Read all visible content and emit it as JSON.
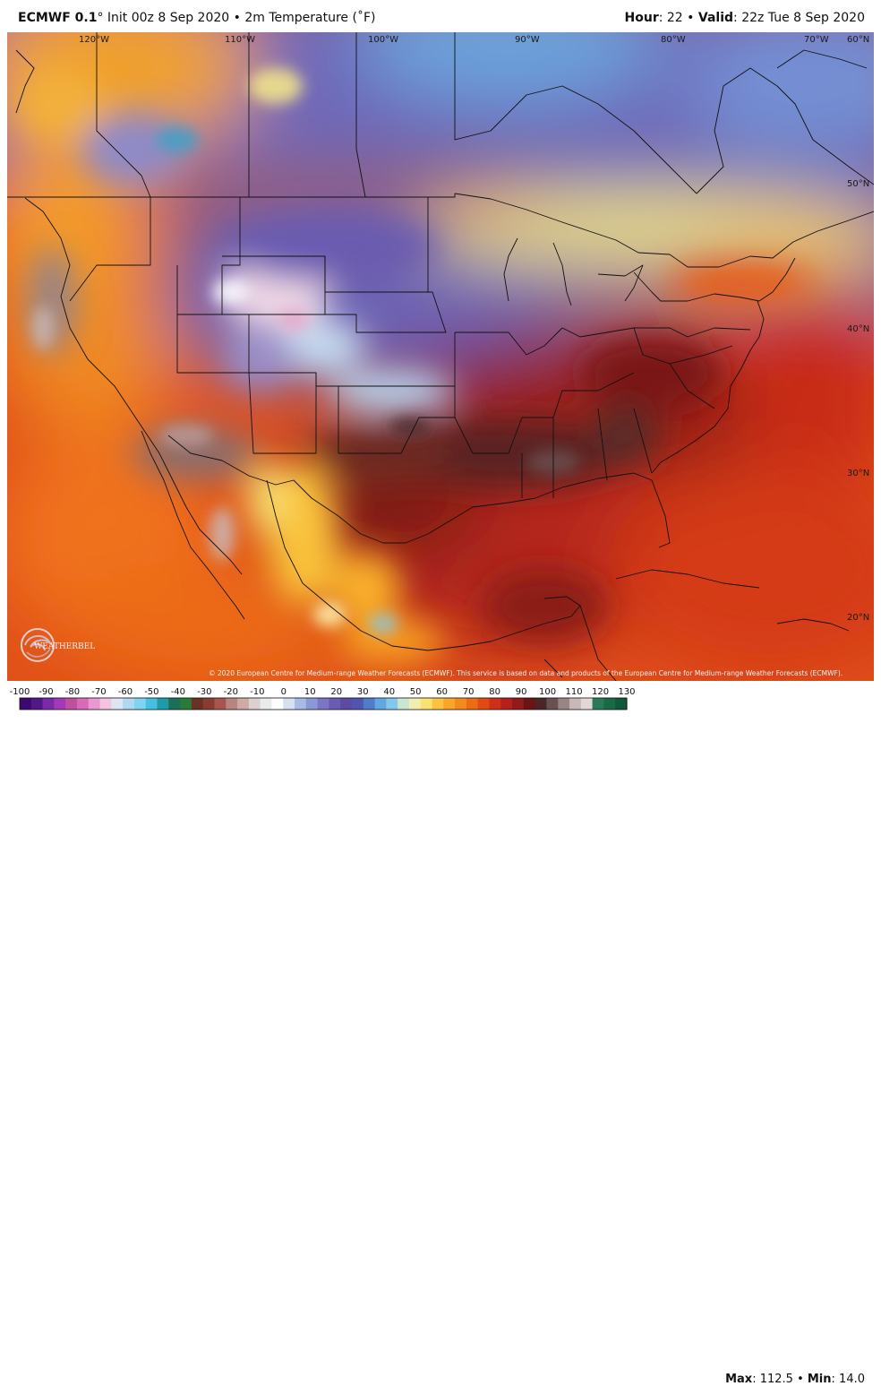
{
  "header": {
    "model": "ECMWF 0.1",
    "degree": "°",
    "init": "Init 00z 8 Sep 2020",
    "sep": "•",
    "product": "2m Temperature (˚F)",
    "hour_label": "Hour",
    "hour_value": ": 22",
    "valid_label": "Valid",
    "valid_value": ": 22z Tue 8 Sep 2020"
  },
  "map": {
    "lon_labels": [
      "120°W",
      "110°W",
      "100°W",
      "90°W",
      "80°W",
      "70°W",
      "60°N"
    ],
    "lat_labels": [
      "50°N",
      "40°N",
      "30°N",
      "20°N"
    ],
    "credit": "© 2020 European Centre for Medium-range Weather Forecasts (ECMWF). This service is based on data and products of the European Centre for Medium-range Weather Forecasts (ECMWF).",
    "logo_text": "WEATHERBELL",
    "logo_icon": "weatherbell-swirl-icon"
  },
  "colorbar": {
    "ticks": [
      "-100",
      "-90",
      "-80",
      "-70",
      "-60",
      "-50",
      "-40",
      "-30",
      "-20",
      "-10",
      "0",
      "10",
      "20",
      "30",
      "40",
      "50",
      "60",
      "70",
      "80",
      "90",
      "100",
      "110",
      "120",
      "130"
    ],
    "colors": [
      "#3c0a6e",
      "#52188a",
      "#7a2aa8",
      "#a23ab8",
      "#c0509e",
      "#d86ab8",
      "#e89ad0",
      "#f2c4e0",
      "#dfe4f2",
      "#b0d8f0",
      "#7fd4f0",
      "#45c0e0",
      "#1f9aa8",
      "#1d6e5a",
      "#2a7a3a",
      "#6a3226",
      "#8a3c30",
      "#a6564e",
      "#b9837f",
      "#cfa9a6",
      "#ddd1cf",
      "#ebebeb",
      "#ffffff",
      "#d6e0f0",
      "#a7bbe4",
      "#8a98d6",
      "#7a76c4",
      "#6a5cb0",
      "#5e4aa0",
      "#4f55b0",
      "#4f7bc8",
      "#5fa9e0",
      "#83c8ea",
      "#c8e6d0",
      "#f2eeb0",
      "#f9e272",
      "#fcc242",
      "#f8a528",
      "#f38a1e",
      "#ec6b16",
      "#e24a14",
      "#cf2f18",
      "#b4201a",
      "#921a1a",
      "#6a1414",
      "#4a2626",
      "#6a5050",
      "#9a8484",
      "#c9b8b8",
      "#e2d8d8",
      "#2a7a5a",
      "#1a6a46",
      "#0e5a3a"
    ],
    "max_label": "Max",
    "max_value": ": 112.5",
    "min_label": "Min",
    "min_value": ": 14.0",
    "sep": "•"
  }
}
